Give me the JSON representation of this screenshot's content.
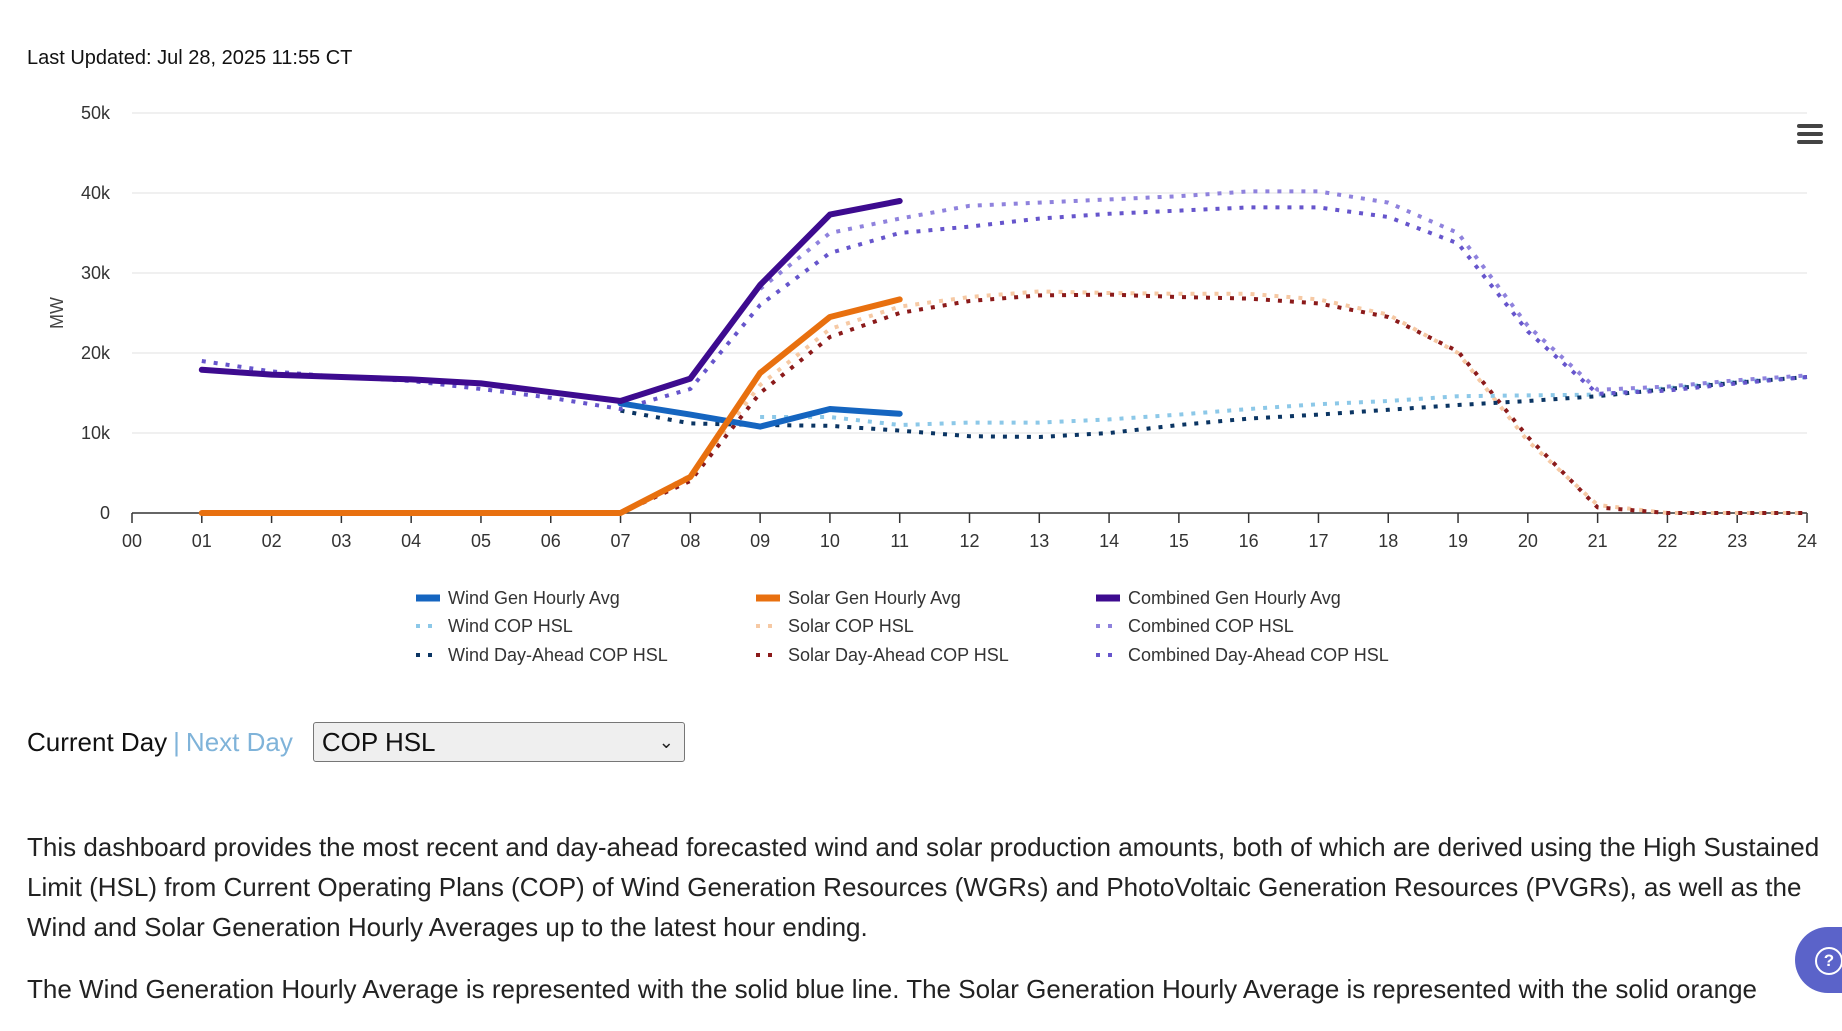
{
  "header": {
    "last_updated": "Last Updated: Jul 28, 2025 11:55 CT"
  },
  "controls": {
    "current_day": "Current Day",
    "separator": "|",
    "next_day": "Next Day",
    "dropdown_value": "COP HSL"
  },
  "description": {
    "p1": "This dashboard provides the most recent and day-ahead forecasted wind and solar production amounts, both of which are derived using the High Sustained Limit (HSL) from Current Operating Plans (COP) of Wind Generation Resources (WGRs) and PhotoVoltaic Generation Resources (PVGRs), as well as the Wind and Solar Generation Hourly Averages up to the latest hour ending.",
    "p2": "The Wind Generation Hourly Average is represented with the solid blue line. The Solar Generation Hourly Average is represented with the solid orange"
  },
  "icons": {
    "menu": "hamburger-menu-icon",
    "help": "help-circle-icon"
  },
  "colors": {
    "accent_next_day": "#7fb3d9",
    "help_button": "#5b63c9"
  },
  "chart_data": {
    "type": "line",
    "ylabel": "MW",
    "xlabel": "",
    "x_ticks": [
      "00",
      "01",
      "02",
      "03",
      "04",
      "05",
      "06",
      "07",
      "08",
      "09",
      "10",
      "11",
      "12",
      "13",
      "14",
      "15",
      "16",
      "17",
      "18",
      "19",
      "20",
      "21",
      "22",
      "23",
      "24"
    ],
    "y_ticks": [
      "0",
      "10k",
      "20k",
      "30k",
      "40k",
      "50k"
    ],
    "xlim": [
      0,
      24
    ],
    "ylim": [
      0,
      50000
    ],
    "grid": true,
    "legend_position": "bottom",
    "series": [
      {
        "name": "Wind Gen Hourly Avg",
        "style": "solid",
        "color": "#1565c0",
        "x": [
          7,
          8,
          9,
          10,
          11
        ],
        "y": [
          13700,
          12300,
          10800,
          13000,
          12400
        ]
      },
      {
        "name": "Solar Gen Hourly Avg",
        "style": "solid",
        "color": "#e8700f",
        "x": [
          1,
          2,
          3,
          4,
          5,
          6,
          7,
          8,
          9,
          10,
          11
        ],
        "y": [
          0,
          0,
          0,
          0,
          0,
          0,
          0,
          4500,
          17500,
          24500,
          26700
        ]
      },
      {
        "name": "Combined Gen Hourly Avg",
        "style": "solid",
        "color": "#3d0b8f",
        "x": [
          1,
          2,
          3,
          4,
          5,
          6,
          7,
          8,
          9,
          10,
          11
        ],
        "y": [
          17900,
          17300,
          17000,
          16700,
          16200,
          15100,
          14000,
          16800,
          28500,
          37300,
          39000
        ]
      },
      {
        "name": "Wind COP HSL",
        "style": "dotted",
        "color": "#8cc8e8",
        "x": [
          9,
          10,
          11,
          12,
          13,
          14,
          15,
          16,
          17,
          18,
          19,
          20,
          21,
          22,
          23,
          24
        ],
        "y": [
          12000,
          12000,
          11000,
          11300,
          11300,
          11700,
          12300,
          13000,
          13600,
          14000,
          14600,
          14700,
          14800,
          15600,
          16400,
          17000
        ]
      },
      {
        "name": "Solar COP HSL",
        "style": "dotted",
        "color": "#f6c9a4",
        "x": [
          7,
          8,
          9,
          10,
          11,
          12,
          13,
          14,
          15,
          16,
          17,
          18,
          19,
          20,
          21,
          22,
          23,
          24
        ],
        "y": [
          0,
          4700,
          16000,
          23000,
          25800,
          27000,
          27700,
          27500,
          27400,
          27400,
          26700,
          24800,
          20000,
          9000,
          1000,
          0,
          0,
          0
        ]
      },
      {
        "name": "Combined COP HSL",
        "style": "dotted",
        "color": "#8f82dd",
        "x": [
          9,
          10,
          11,
          12,
          13,
          14,
          15,
          16,
          17,
          18,
          19,
          20,
          21,
          22,
          23,
          24
        ],
        "y": [
          28000,
          35000,
          36800,
          38400,
          38800,
          39200,
          39600,
          40200,
          40200,
          38800,
          35000,
          23400,
          15400,
          15800,
          16600,
          17200
        ]
      },
      {
        "name": "Wind Day-Ahead COP HSL",
        "style": "dotted",
        "color": "#0b3563",
        "x": [
          7,
          8,
          9,
          10,
          11,
          12,
          13,
          14,
          15,
          16,
          17,
          18,
          19,
          20,
          21,
          22,
          23,
          24
        ],
        "y": [
          12800,
          11200,
          11000,
          10900,
          10300,
          9600,
          9500,
          10000,
          11000,
          11800,
          12300,
          12900,
          13500,
          14000,
          14600,
          15500,
          16300,
          17000
        ]
      },
      {
        "name": "Solar Day-Ahead COP HSL",
        "style": "dotted",
        "color": "#8b1a1a",
        "x": [
          7,
          8,
          9,
          10,
          11,
          12,
          13,
          14,
          15,
          16,
          17,
          18,
          19,
          20,
          21,
          22,
          23,
          24
        ],
        "y": [
          0,
          4000,
          15000,
          22000,
          25000,
          26500,
          27200,
          27300,
          27000,
          26800,
          26200,
          24500,
          20200,
          9500,
          700,
          0,
          0,
          0
        ]
      },
      {
        "name": "Combined Day-Ahead COP HSL",
        "style": "dotted",
        "color": "#6655cc",
        "x": [
          1,
          2,
          3,
          4,
          5,
          6,
          7,
          8,
          9,
          10,
          11,
          12,
          13,
          14,
          15,
          16,
          17,
          18,
          19,
          20,
          21,
          22,
          23,
          24
        ],
        "y": [
          19000,
          17700,
          17000,
          16500,
          15500,
          14400,
          13000,
          15500,
          26000,
          32500,
          35000,
          35800,
          36800,
          37400,
          37800,
          38200,
          38200,
          37000,
          33700,
          22700,
          14900,
          15300,
          16200,
          17000
        ]
      }
    ]
  }
}
